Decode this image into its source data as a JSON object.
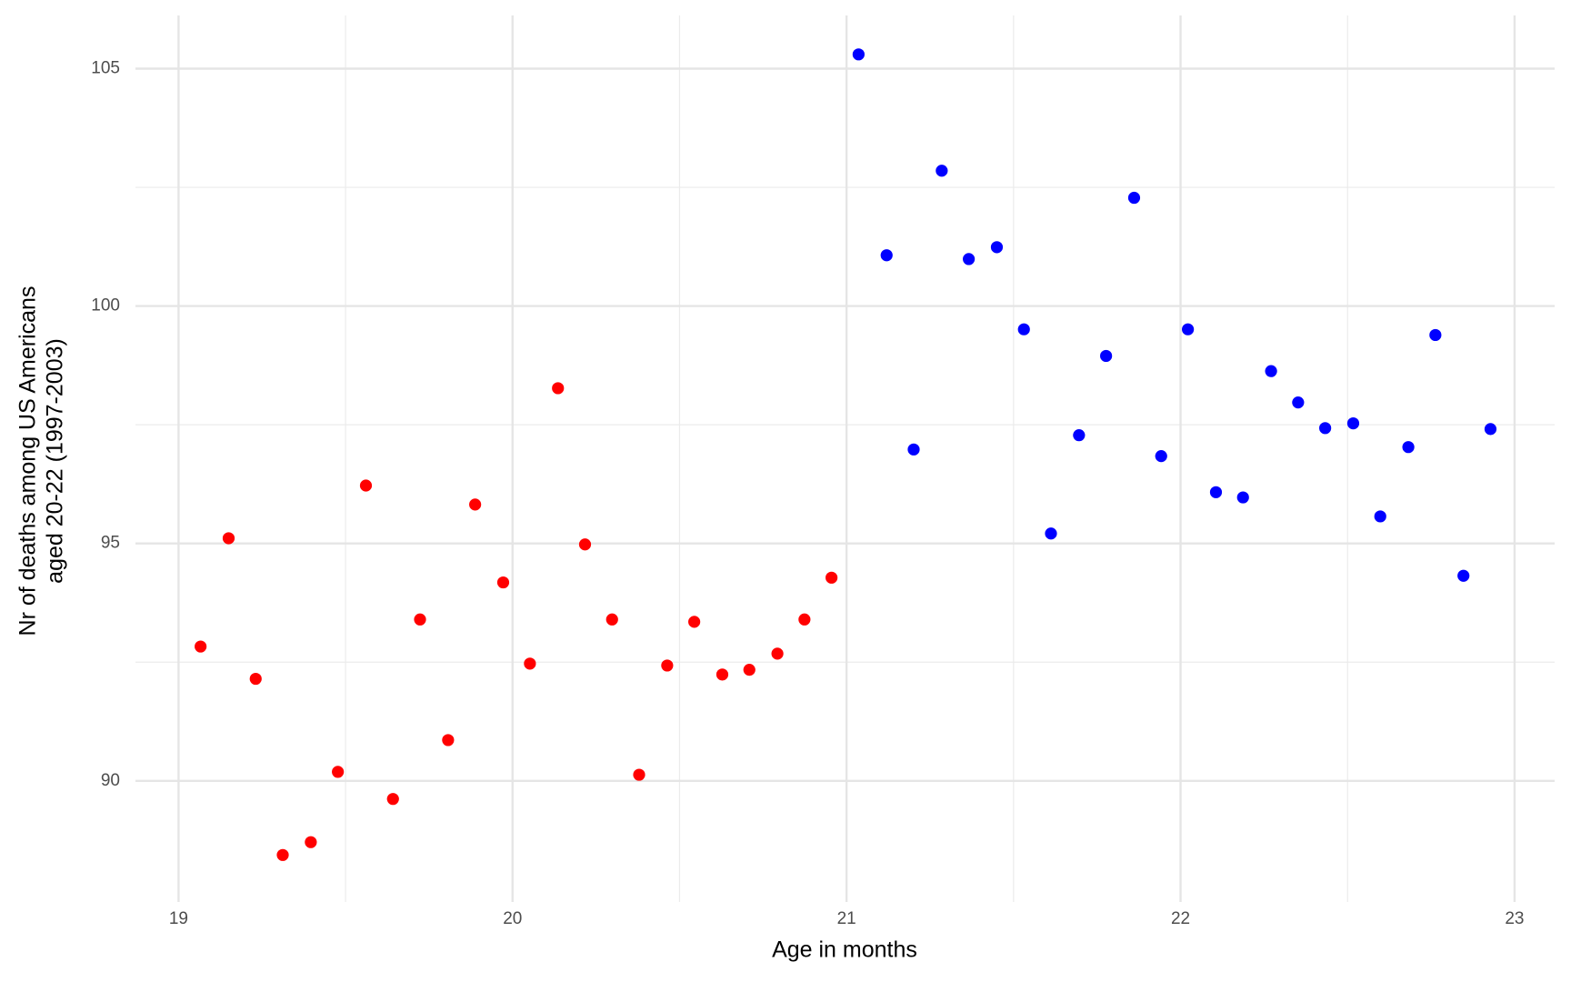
{
  "chart_data": {
    "type": "scatter",
    "xlabel": "Age in months",
    "ylabel": [
      "Nr of deaths among US Americans",
      "aged 20-22 (1997-2003)"
    ],
    "xlim": [
      18.871,
      23.12
    ],
    "ylim": [
      87.45,
      106.12
    ],
    "xticks": [
      19,
      20,
      21,
      22,
      23
    ],
    "yticks": [
      90,
      95,
      100,
      105
    ],
    "x_minor_grid": [
      19.5,
      20.5,
      21.5,
      22.5
    ],
    "y_minor_grid": [
      92.5,
      97.5,
      102.5
    ],
    "grid": true,
    "series": [
      {
        "color": "#ff0000",
        "x": [
          19.066,
          19.15,
          19.231,
          19.312,
          19.396,
          19.477,
          19.561,
          19.642,
          19.723,
          19.807,
          19.888,
          19.972,
          20.052,
          20.136,
          20.217,
          20.298,
          20.379,
          20.463,
          20.544,
          20.628,
          20.709,
          20.793,
          20.874,
          20.955
        ],
        "values": [
          92.83,
          95.11,
          92.15,
          88.44,
          88.71,
          90.19,
          96.22,
          89.62,
          93.4,
          90.86,
          95.82,
          94.18,
          92.47,
          98.27,
          94.98,
          93.4,
          90.13,
          92.43,
          93.35,
          92.24,
          92.34,
          92.68,
          93.4,
          94.28
        ]
      },
      {
        "color": "#0000ff",
        "x": [
          21.036,
          21.12,
          21.201,
          21.285,
          21.366,
          21.45,
          21.531,
          21.612,
          21.696,
          21.777,
          21.861,
          21.942,
          22.022,
          22.106,
          22.187,
          22.271,
          22.352,
          22.433,
          22.517,
          22.598,
          22.682,
          22.763,
          22.847,
          22.928
        ],
        "values": [
          105.3,
          101.07,
          96.98,
          102.85,
          100.99,
          101.24,
          99.51,
          95.21,
          97.28,
          98.95,
          102.28,
          96.84,
          99.51,
          96.08,
          95.97,
          98.63,
          97.97,
          97.43,
          97.53,
          95.57,
          97.03,
          99.39,
          94.32,
          97.41
        ]
      }
    ]
  }
}
